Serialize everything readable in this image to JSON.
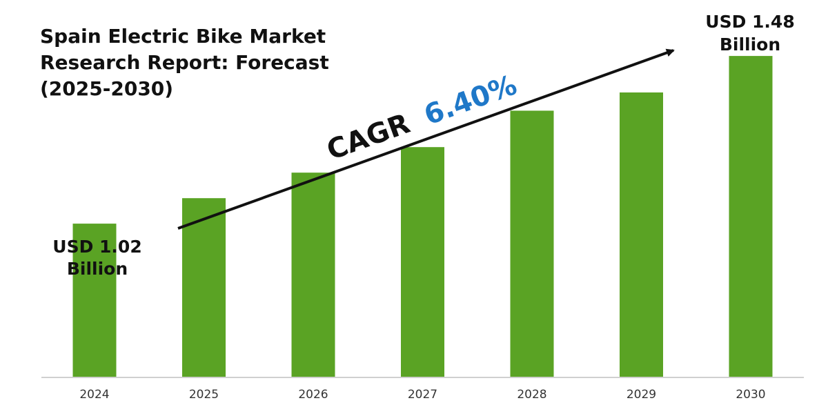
{
  "chart_data": {
    "type": "bar",
    "title_lines": [
      "Spain Electric Bike Market",
      "Research Report: Forecast",
      "(2025-2030)"
    ],
    "categories": [
      "2024",
      "2025",
      "2026",
      "2027",
      "2028",
      "2029",
      "2030"
    ],
    "values": [
      1.02,
      1.09,
      1.16,
      1.23,
      1.33,
      1.38,
      1.48
    ],
    "ylim": [
      0.6,
      1.52
    ],
    "bar_color": "#5aa324",
    "axis_visible": false,
    "grid": false,
    "annotations": {
      "first_line1": "USD 1.02",
      "first_line2": "Billion",
      "last_line1": "USD 1.48",
      "last_line2": "Billion"
    },
    "cagr": {
      "label": "CAGR",
      "value": "6.40%",
      "value_color": "#1f78c8"
    }
  }
}
